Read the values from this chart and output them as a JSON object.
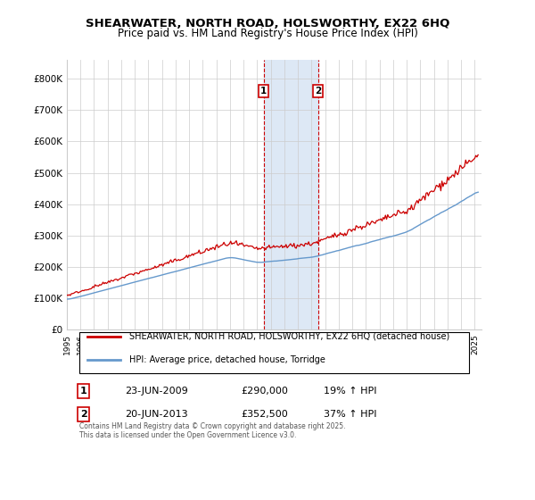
{
  "title": "SHEARWATER, NORTH ROAD, HOLSWORTHY, EX22 6HQ",
  "subtitle": "Price paid vs. HM Land Registry's House Price Index (HPI)",
  "legend_line1": "SHEARWATER, NORTH ROAD, HOLSWORTHY, EX22 6HQ (detached house)",
  "legend_line2": "HPI: Average price, detached house, Torridge",
  "sale1_label": "1",
  "sale1_date": "23-JUN-2009",
  "sale1_price": "£290,000",
  "sale1_hpi": "19% ↑ HPI",
  "sale2_label": "2",
  "sale2_date": "20-JUN-2013",
  "sale2_price": "£352,500",
  "sale2_hpi": "37% ↑ HPI",
  "sale1_x": 2009.48,
  "sale2_x": 2013.48,
  "copyright": "Contains HM Land Registry data © Crown copyright and database right 2025.\nThis data is licensed under the Open Government Licence v3.0.",
  "red_color": "#cc0000",
  "blue_color": "#6699cc",
  "shaded_color": "#dde8f5",
  "grid_color": "#cccccc",
  "xmin": 1995,
  "xmax": 2025.5,
  "ymin": 0,
  "ymax": 860000
}
